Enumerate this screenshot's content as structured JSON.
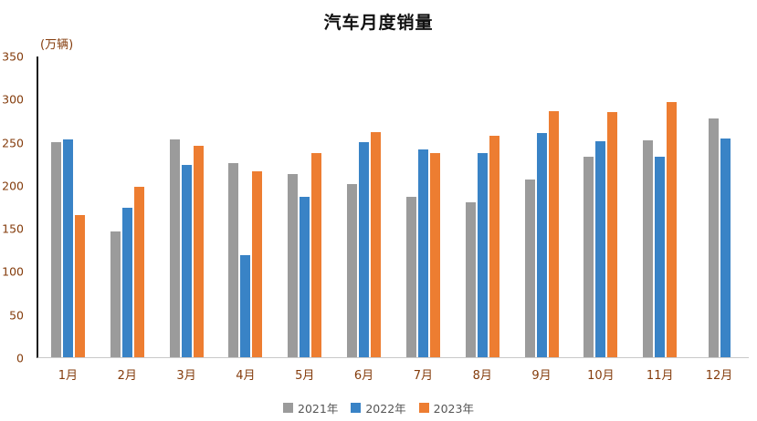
{
  "chart_data": {
    "type": "bar",
    "title": "汽车月度销量",
    "unit_label": "(万辆)",
    "categories": [
      "1月",
      "2月",
      "3月",
      "4月",
      "5月",
      "6月",
      "7月",
      "8月",
      "9月",
      "10月",
      "11月",
      "12月"
    ],
    "series": [
      {
        "name": "2021年",
        "color": "#9B9B9B",
        "values": [
          250,
          146,
          253,
          226,
          213,
          202,
          187,
          180,
          207,
          233,
          252,
          278
        ]
      },
      {
        "name": "2022年",
        "color": "#3983C6",
        "values": [
          253,
          174,
          224,
          119,
          187,
          250,
          242,
          238,
          261,
          251,
          233,
          255
        ]
      },
      {
        "name": "2023年",
        "color": "#ED7D31",
        "values": [
          165,
          198,
          246,
          216,
          238,
          262,
          238,
          258,
          286,
          285,
          297,
          null
        ]
      }
    ],
    "ylim": [
      0,
      350
    ],
    "yticks": [
      0,
      50,
      100,
      150,
      200,
      250,
      300,
      350
    ],
    "grid": false,
    "legend_position": "bottom",
    "axis_label_color": "#843C0C"
  }
}
